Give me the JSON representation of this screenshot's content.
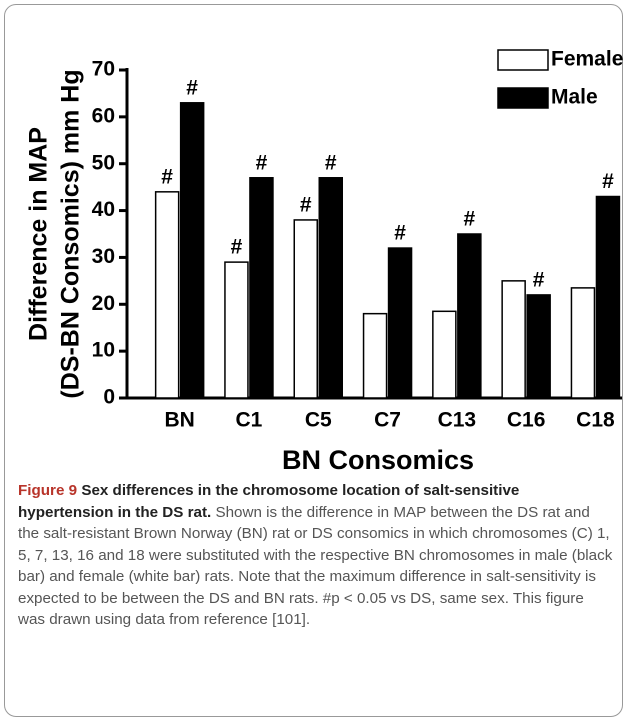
{
  "chart_data": {
    "type": "bar",
    "ylabel": [
      "Difference in MAP",
      "(DS-BN Consomics) mm Hg"
    ],
    "xlabel": "BN Consomics",
    "categories": [
      "BN",
      "C1",
      "C5",
      "C7",
      "C13",
      "C16",
      "C18"
    ],
    "series": [
      {
        "name": "Female",
        "color": "#ffffff",
        "values": [
          44,
          29,
          38,
          18,
          18.5,
          25,
          23.5
        ],
        "markers": [
          "#",
          "#",
          "#",
          null,
          null,
          null,
          null
        ]
      },
      {
        "name": "Male",
        "color": "#000000",
        "values": [
          63,
          47,
          47,
          32,
          35,
          22,
          43
        ],
        "markers": [
          "#",
          "#",
          "#",
          "#",
          "#",
          "#",
          "#"
        ]
      }
    ],
    "ylim": [
      0,
      70
    ],
    "yticks": [
      0,
      10,
      20,
      30,
      40,
      50,
      60,
      70
    ],
    "legend": "upper right"
  },
  "caption": {
    "label": "Figure 9",
    "title": "Sex differences in the chromosome location of salt-sensitive hypertension in the DS rat.",
    "text": "Shown is the difference in MAP between the DS rat and the salt-resistant Brown Norway (BN) rat or DS consomics in which chromosomes (C) 1, 5, 7, 13, 16 and 18 were substituted with the respective BN chromosomes in male (black bar) and female (white bar) rats. Note that the maximum difference in salt-sensitivity is expected to be between the DS and BN rats. #p < 0.05 vs DS, same sex. This figure was drawn using data from reference [101]."
  }
}
